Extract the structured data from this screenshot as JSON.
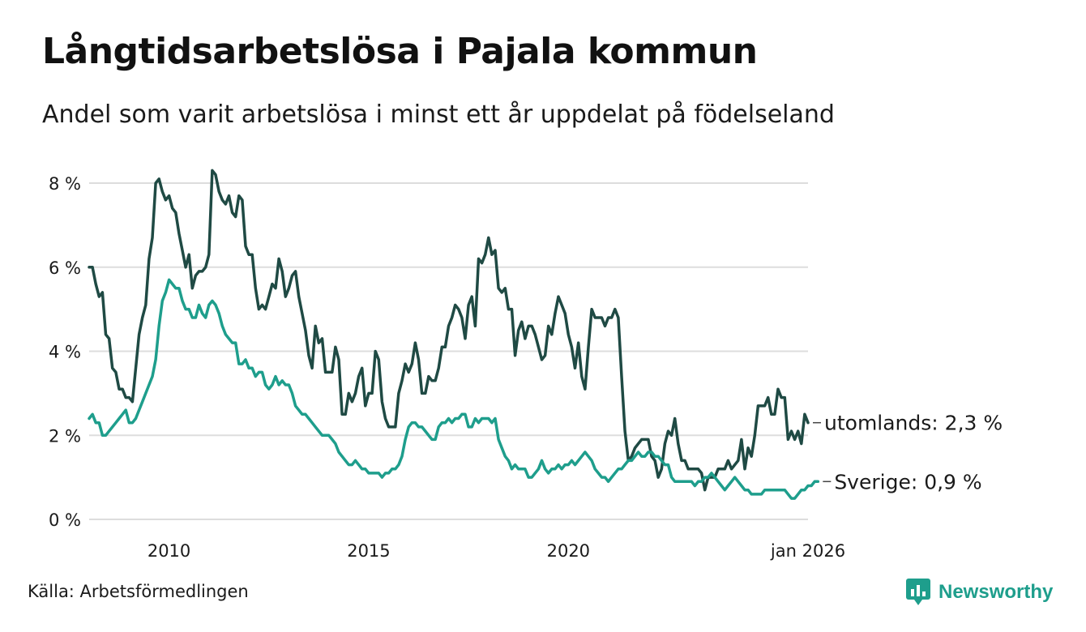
{
  "header": {
    "title": "Långtidsarbetslösa i Pajala kommun",
    "subtitle": "Andel som varit arbetslösa i minst ett år uppdelat på födelseland"
  },
  "footer": {
    "source": "Källa: Arbetsförmedlingen",
    "brand": "Newsworthy"
  },
  "colors": {
    "utomlands": "#1f4a44",
    "sverige": "#1e9e8c",
    "grid": "#dddddd",
    "brand": "#1e9e8c"
  },
  "chart_data": {
    "type": "line",
    "title": "Långtidsarbetslösa i Pajala kommun",
    "xlabel": "",
    "ylabel": "",
    "ylim": [
      0,
      8
    ],
    "xlim": [
      2008.0,
      2026.0
    ],
    "yticks": [
      0,
      2,
      4,
      6,
      8
    ],
    "ytick_labels": [
      "0 %",
      "2 %",
      "4 %",
      "6 %",
      "8 %"
    ],
    "xticks": [
      2010,
      2015,
      2020,
      2026
    ],
    "xtick_labels": [
      "2010",
      "2015",
      "2020",
      "jan 2026"
    ],
    "grid": true,
    "series": [
      {
        "name": "utomlands",
        "end_label": "utomlands: 2,3 %",
        "color": "#1f4a44",
        "x_start": 2008.0,
        "step_months": 1,
        "values": [
          6.0,
          6.0,
          5.6,
          5.3,
          5.4,
          4.4,
          4.3,
          3.6,
          3.5,
          3.1,
          3.1,
          2.9,
          2.9,
          2.8,
          3.6,
          4.4,
          4.8,
          5.1,
          6.2,
          6.7,
          8.0,
          8.1,
          7.8,
          7.6,
          7.7,
          7.4,
          7.3,
          6.8,
          6.4,
          6.0,
          6.3,
          5.5,
          5.8,
          5.9,
          5.9,
          6.0,
          6.3,
          8.3,
          8.2,
          7.8,
          7.6,
          7.5,
          7.7,
          7.3,
          7.2,
          7.7,
          7.6,
          6.5,
          6.3,
          6.3,
          5.5,
          5.0,
          5.1,
          5.0,
          5.3,
          5.6,
          5.5,
          6.2,
          5.9,
          5.3,
          5.5,
          5.8,
          5.9,
          5.3,
          4.9,
          4.5,
          3.9,
          3.6,
          4.6,
          4.2,
          4.3,
          3.5,
          3.5,
          3.5,
          4.1,
          3.8,
          2.5,
          2.5,
          3.0,
          2.8,
          3.0,
          3.4,
          3.6,
          2.7,
          3.0,
          3.0,
          4.0,
          3.8,
          2.8,
          2.4,
          2.2,
          2.2,
          2.2,
          3.0,
          3.3,
          3.7,
          3.5,
          3.7,
          4.2,
          3.8,
          3.0,
          3.0,
          3.4,
          3.3,
          3.3,
          3.6,
          4.1,
          4.1,
          4.6,
          4.8,
          5.1,
          5.0,
          4.8,
          4.3,
          5.1,
          5.3,
          4.6,
          6.2,
          6.1,
          6.3,
          6.7,
          6.3,
          6.4,
          5.5,
          5.4,
          5.5,
          5.0,
          5.0,
          3.9,
          4.5,
          4.7,
          4.3,
          4.6,
          4.6,
          4.4,
          4.1,
          3.8,
          3.9,
          4.6,
          4.4,
          4.9,
          5.3,
          5.1,
          4.9,
          4.4,
          4.1,
          3.6,
          4.2,
          3.4,
          3.1,
          4.1,
          5.0,
          4.8,
          4.8,
          4.8,
          4.6,
          4.8,
          4.8,
          5.0,
          4.8,
          3.4,
          2.1,
          1.4,
          1.5,
          1.7,
          1.8,
          1.9,
          1.9,
          1.9,
          1.5,
          1.4,
          1.0,
          1.2,
          1.8,
          2.1,
          2.0,
          2.4,
          1.8,
          1.4,
          1.4,
          1.2,
          1.2,
          1.2,
          1.2,
          1.1,
          0.7,
          1.0,
          1.0,
          1.0,
          1.2,
          1.2,
          1.2,
          1.4,
          1.2,
          1.3,
          1.4,
          1.9,
          1.2,
          1.7,
          1.5,
          2.0,
          2.7,
          2.7,
          2.7,
          2.9,
          2.5,
          2.5,
          3.1,
          2.9,
          2.9,
          1.9,
          2.1,
          1.9,
          2.1,
          1.8,
          2.5,
          2.3
        ]
      },
      {
        "name": "Sverige",
        "end_label": "Sverige: 0,9 %",
        "color": "#1e9e8c",
        "x_start": 2008.0,
        "step_months": 1,
        "values": [
          2.4,
          2.5,
          2.3,
          2.3,
          2.0,
          2.0,
          2.1,
          2.2,
          2.3,
          2.4,
          2.5,
          2.6,
          2.3,
          2.3,
          2.4,
          2.6,
          2.8,
          3.0,
          3.2,
          3.4,
          3.8,
          4.6,
          5.2,
          5.4,
          5.7,
          5.6,
          5.5,
          5.5,
          5.2,
          5.0,
          5.0,
          4.8,
          4.8,
          5.1,
          4.9,
          4.8,
          5.1,
          5.2,
          5.1,
          4.9,
          4.6,
          4.4,
          4.3,
          4.2,
          4.2,
          3.7,
          3.7,
          3.8,
          3.6,
          3.6,
          3.4,
          3.5,
          3.5,
          3.2,
          3.1,
          3.2,
          3.4,
          3.2,
          3.3,
          3.2,
          3.2,
          3.0,
          2.7,
          2.6,
          2.5,
          2.5,
          2.4,
          2.3,
          2.2,
          2.1,
          2.0,
          2.0,
          2.0,
          1.9,
          1.8,
          1.6,
          1.5,
          1.4,
          1.3,
          1.3,
          1.4,
          1.3,
          1.2,
          1.2,
          1.1,
          1.1,
          1.1,
          1.1,
          1.0,
          1.1,
          1.1,
          1.2,
          1.2,
          1.3,
          1.5,
          1.9,
          2.2,
          2.3,
          2.3,
          2.2,
          2.2,
          2.1,
          2.0,
          1.9,
          1.9,
          2.2,
          2.3,
          2.3,
          2.4,
          2.3,
          2.4,
          2.4,
          2.5,
          2.5,
          2.2,
          2.2,
          2.4,
          2.3,
          2.4,
          2.4,
          2.4,
          2.3,
          2.4,
          1.9,
          1.7,
          1.5,
          1.4,
          1.2,
          1.3,
          1.2,
          1.2,
          1.2,
          1.0,
          1.0,
          1.1,
          1.2,
          1.4,
          1.2,
          1.1,
          1.2,
          1.2,
          1.3,
          1.2,
          1.3,
          1.3,
          1.4,
          1.3,
          1.4,
          1.5,
          1.6,
          1.5,
          1.4,
          1.2,
          1.1,
          1.0,
          1.0,
          0.9,
          1.0,
          1.1,
          1.2,
          1.2,
          1.3,
          1.4,
          1.4,
          1.5,
          1.6,
          1.5,
          1.5,
          1.6,
          1.6,
          1.5,
          1.5,
          1.4,
          1.3,
          1.3,
          1.0,
          0.9,
          0.9,
          0.9,
          0.9,
          0.9,
          0.9,
          0.8,
          0.9,
          0.9,
          1.0,
          1.0,
          1.1,
          1.0,
          0.9,
          0.8,
          0.7,
          0.8,
          0.9,
          1.0,
          0.9,
          0.8,
          0.7,
          0.7,
          0.6,
          0.6,
          0.6,
          0.6,
          0.7,
          0.7,
          0.7,
          0.7,
          0.7,
          0.7,
          0.7,
          0.6,
          0.5,
          0.5,
          0.6,
          0.7,
          0.7,
          0.8,
          0.8,
          0.9,
          0.9
        ]
      }
    ]
  }
}
